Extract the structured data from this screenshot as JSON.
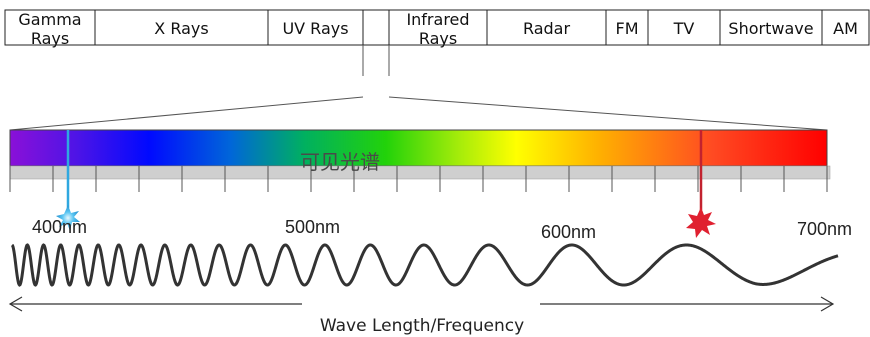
{
  "bands": [
    {
      "lines": [
        "Gamma",
        "Rays"
      ]
    },
    {
      "lines": [
        "X Rays"
      ]
    },
    {
      "lines": [
        "UV Rays"
      ]
    },
    {
      "lines": [
        ""
      ]
    },
    {
      "lines": [
        "Infrared",
        "Rays"
      ]
    },
    {
      "lines": [
        "Radar"
      ]
    },
    {
      "lines": [
        "FM"
      ]
    },
    {
      "lines": [
        "TV"
      ]
    },
    {
      "lines": [
        "Shortwave"
      ]
    },
    {
      "lines": [
        "AM"
      ]
    }
  ],
  "visible_spectrum_label": "可见光谱",
  "wavelength_labels": [
    "400nm",
    "500nm",
    "600nm",
    "700nm"
  ],
  "axis_label": "Wave Length/Frequency",
  "colors": {
    "blue_marker": "#2fa8e0",
    "red_marker": "#c2222f",
    "wave": "#333333",
    "ruler": "#cfcfcf"
  }
}
